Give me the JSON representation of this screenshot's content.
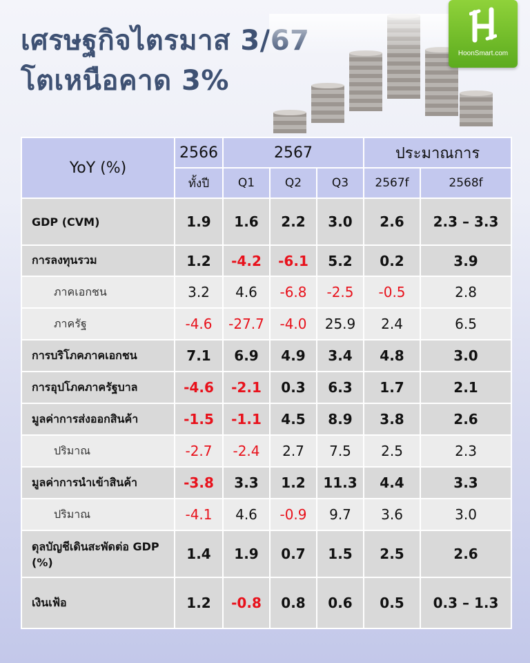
{
  "header": {
    "title_line1": "เศรษฐกิจไตรมาส 3/67",
    "title_line2": "โตเหนือคาด 3%"
  },
  "logo": {
    "text": "HoonSmart.com",
    "icon": "hoonsmart-h-icon",
    "color": "#6dbb26"
  },
  "colors": {
    "title": "#3e5173",
    "header_bg": "#c3c8ee",
    "negative": "#e8111b"
  },
  "table": {
    "corner": "YoY (%)",
    "groups": [
      "2566",
      "2567",
      "ประมาณการ"
    ],
    "columns": [
      "ทั้งปี",
      "Q1",
      "Q2",
      "Q3",
      "2567f",
      "2568f"
    ],
    "rows": [
      {
        "label": "GDP (CVM)",
        "level": "main",
        "values": [
          "1.9",
          "1.6",
          "2.2",
          "3.0",
          "2.6",
          "2.3 – 3.3"
        ]
      },
      {
        "label": "การลงทุนรวม",
        "level": "main",
        "values": [
          "1.2",
          "-4.2",
          "-6.1",
          "5.2",
          "0.2",
          "3.9"
        ]
      },
      {
        "label": "ภาคเอกชน",
        "level": "sub",
        "values": [
          "3.2",
          "4.6",
          "-6.8",
          "-2.5",
          "-0.5",
          "2.8"
        ]
      },
      {
        "label": "ภาครัฐ",
        "level": "sub",
        "values": [
          "-4.6",
          "-27.7",
          "-4.0",
          "25.9",
          "2.4",
          "6.5"
        ]
      },
      {
        "label": "การบริโภคภาคเอกชน",
        "level": "main",
        "values": [
          "7.1",
          "6.9",
          "4.9",
          "3.4",
          "4.8",
          "3.0"
        ]
      },
      {
        "label": "การอุปโภคภาครัฐบาล",
        "level": "main",
        "values": [
          "-4.6",
          "-2.1",
          "0.3",
          "6.3",
          "1.7",
          "2.1"
        ]
      },
      {
        "label": "มูลค่าการส่งออกสินค้า",
        "level": "main",
        "values": [
          "-1.5",
          "-1.1",
          "4.5",
          "8.9",
          "3.8",
          "2.6"
        ]
      },
      {
        "label": "ปริมาณ",
        "level": "sub",
        "values": [
          "-2.7",
          "-2.4",
          "2.7",
          "7.5",
          "2.5",
          "2.3"
        ]
      },
      {
        "label": "มูลค่าการนำเข้าสินค้า",
        "level": "main",
        "values": [
          "-3.8",
          "3.3",
          "1.2",
          "11.3",
          "4.4",
          "3.3"
        ]
      },
      {
        "label": "ปริมาณ",
        "level": "sub",
        "values": [
          "-4.1",
          "4.6",
          "-0.9",
          "9.7",
          "3.6",
          "3.0"
        ]
      },
      {
        "label": "ดุลบัญชีเดินสะพัดต่อ GDP (%)",
        "level": "main",
        "values": [
          "1.4",
          "1.9",
          "0.7",
          "1.5",
          "2.5",
          "2.6"
        ]
      },
      {
        "label": "เงินเฟ้อ",
        "level": "main",
        "values": [
          "1.2",
          "-0.8",
          "0.8",
          "0.6",
          "0.5",
          "0.3 – 1.3"
        ]
      }
    ]
  }
}
